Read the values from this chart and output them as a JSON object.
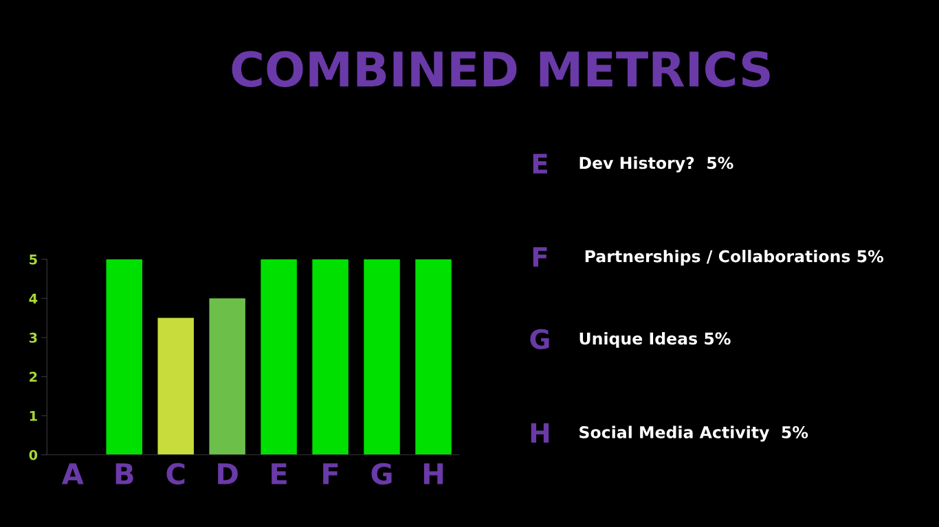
{
  "chart_data": {
    "type": "bar",
    "title": "COMBINED METRICS",
    "categories": [
      "A",
      "B",
      "C",
      "D",
      "E",
      "F",
      "G",
      "H"
    ],
    "values": [
      0,
      5,
      3.5,
      4,
      5,
      5,
      5,
      5
    ],
    "colors": [
      "#00e000",
      "#00e000",
      "#c8dc3c",
      "#6cc04a",
      "#00e000",
      "#00e000",
      "#00e000",
      "#00e000"
    ],
    "ylim": [
      0,
      5
    ],
    "yticks": [
      0,
      1,
      2,
      3,
      4,
      5
    ],
    "grid": false,
    "legend": false,
    "annotations": [
      "E",
      "Dev History?  5%",
      "F",
      " Partnerships / Collaborations 5%",
      "G",
      "Unique Ideas 5%",
      "H",
      "Social Media Activity  5%"
    ]
  }
}
